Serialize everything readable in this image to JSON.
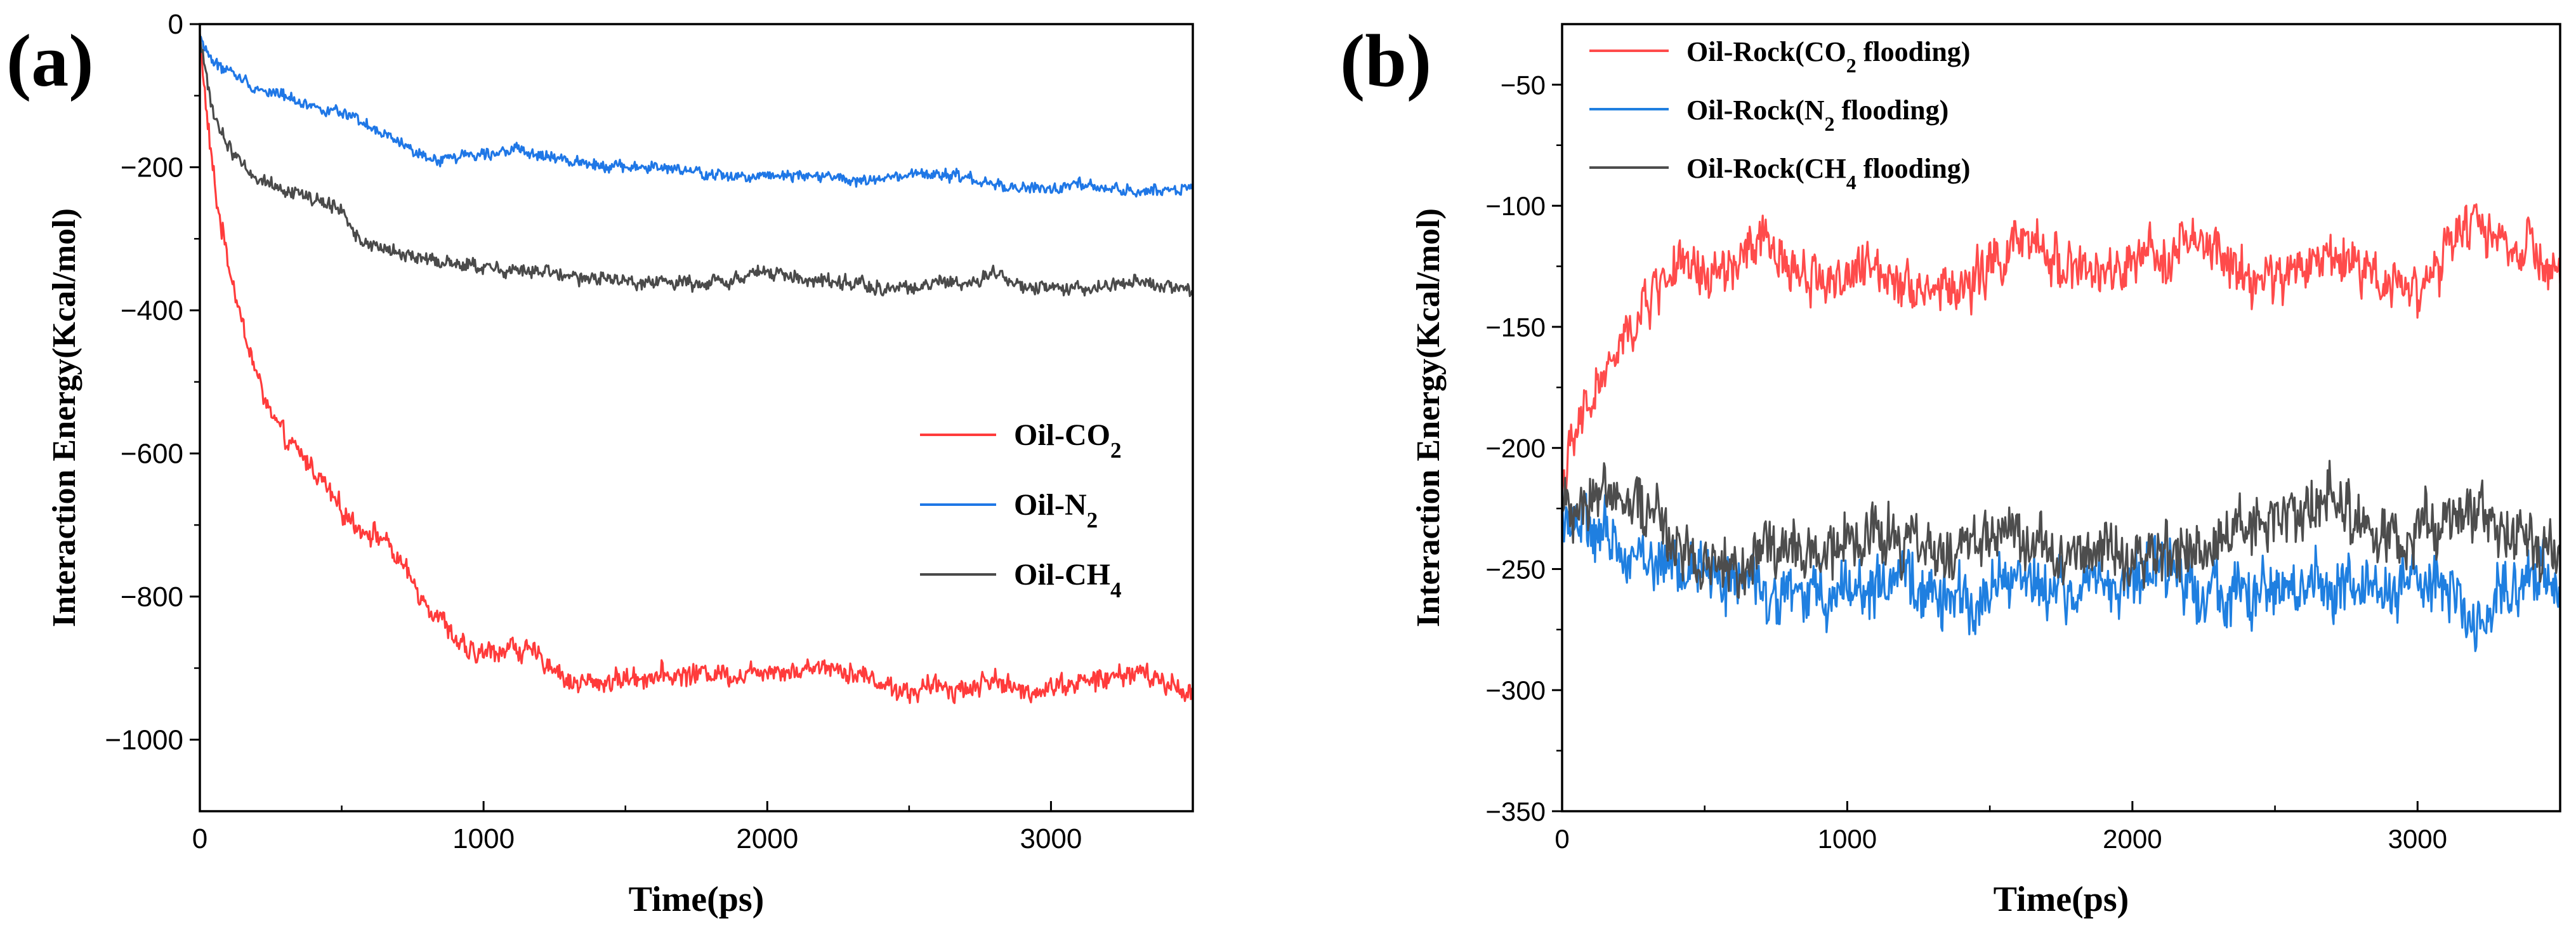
{
  "chart_data": [
    {
      "type": "line",
      "panel_label": "(a)",
      "xlabel": "Time(ps)",
      "ylabel": "Interaction Energy(Kcal/mol)",
      "xlim": [
        0,
        3500
      ],
      "ylim": [
        -1100,
        0
      ],
      "x_ticks": [
        0,
        1000,
        2000,
        3000
      ],
      "x_tick_labels": [
        "0",
        "1000",
        "2000",
        "3000"
      ],
      "y_ticks": [
        0,
        -200,
        -400,
        -600,
        -800,
        -1000
      ],
      "y_tick_labels": [
        "0",
        "−200",
        "−400",
        "−600",
        "−800",
        "−1000"
      ],
      "legend_position": "center-right",
      "series": [
        {
          "name": "Oil-CO2",
          "label_main": "Oil-CO",
          "label_sub": "2",
          "label_after": "",
          "color": "#ff3b3b",
          "x": [
            0,
            30,
            60,
            100,
            150,
            200,
            250,
            300,
            350,
            400,
            450,
            500,
            550,
            600,
            650,
            700,
            750,
            800,
            850,
            900,
            950,
            1000,
            1100,
            1200,
            1250,
            1300,
            1400,
            1500,
            1600,
            1700,
            1800,
            1900,
            2000,
            2100,
            2200,
            2300,
            2400,
            2500,
            2600,
            2700,
            2800,
            2900,
            3000,
            3100,
            3200,
            3300,
            3400,
            3500
          ],
          "y": [
            -20,
            -150,
            -250,
            -330,
            -420,
            -490,
            -545,
            -580,
            -600,
            -620,
            -650,
            -680,
            -700,
            -710,
            -720,
            -750,
            -780,
            -810,
            -830,
            -860,
            -880,
            -880,
            -870,
            -885,
            -900,
            -920,
            -920,
            -915,
            -910,
            -910,
            -905,
            -910,
            -900,
            -905,
            -895,
            -905,
            -920,
            -935,
            -925,
            -930,
            -915,
            -935,
            -925,
            -920,
            -915,
            -905,
            -920,
            -935
          ],
          "noise": 17
        },
        {
          "name": "Oil-N2",
          "label_main": "Oil-N",
          "label_sub": "2",
          "label_after": "",
          "color": "#1f77e6",
          "x": [
            0,
            50,
            100,
            200,
            300,
            400,
            500,
            600,
            700,
            800,
            900,
            1000,
            1100,
            1200,
            1300,
            1400,
            1500,
            1600,
            1700,
            1800,
            1900,
            2000,
            2100,
            2200,
            2300,
            2400,
            2500,
            2600,
            2700,
            2800,
            2900,
            3000,
            3100,
            3200,
            3300,
            3400,
            3500
          ],
          "y": [
            -20,
            -55,
            -65,
            -90,
            -100,
            -115,
            -125,
            -145,
            -165,
            -190,
            -185,
            -180,
            -175,
            -185,
            -190,
            -195,
            -200,
            -200,
            -205,
            -210,
            -215,
            -210,
            -210,
            -212,
            -220,
            -218,
            -212,
            -210,
            -215,
            -225,
            -230,
            -230,
            -225,
            -230,
            -235,
            -230,
            -230
          ],
          "noise": 9
        },
        {
          "name": "Oil-CH4",
          "label_main": "Oil-CH",
          "label_sub": "4",
          "label_after": "",
          "color": "#4a4a4a",
          "x": [
            0,
            30,
            60,
            100,
            150,
            200,
            300,
            400,
            500,
            550,
            600,
            700,
            800,
            900,
            1000,
            1100,
            1200,
            1300,
            1400,
            1500,
            1600,
            1700,
            1800,
            1900,
            2000,
            2100,
            2200,
            2300,
            2400,
            2500,
            2600,
            2700,
            2800,
            2900,
            3000,
            3100,
            3200,
            3300,
            3400,
            3500
          ],
          "y": [
            -20,
            -90,
            -140,
            -170,
            -195,
            -215,
            -230,
            -245,
            -260,
            -295,
            -310,
            -320,
            -330,
            -335,
            -340,
            -345,
            -345,
            -355,
            -355,
            -360,
            -360,
            -362,
            -360,
            -355,
            -345,
            -355,
            -360,
            -362,
            -368,
            -370,
            -360,
            -365,
            -350,
            -368,
            -372,
            -370,
            -365,
            -360,
            -368,
            -375
          ],
          "noise": 11
        }
      ]
    },
    {
      "type": "line",
      "panel_label": "(b)",
      "xlabel": "Time(ps)",
      "ylabel": "Interaction Energy(Kcal/mol)",
      "xlim": [
        0,
        3500
      ],
      "ylim": [
        -350,
        -25
      ],
      "x_ticks": [
        0,
        1000,
        2000,
        3000
      ],
      "x_tick_labels": [
        "0",
        "1000",
        "2000",
        "3000"
      ],
      "y_ticks": [
        -50,
        -100,
        -150,
        -200,
        -250,
        -300,
        -350
      ],
      "y_tick_labels": [
        "−50",
        "−100",
        "−150",
        "−200",
        "−250",
        "−300",
        "−350"
      ],
      "legend_position": "top-left",
      "series": [
        {
          "name": "Oil-Rock(CO2 flooding)",
          "label_main": "Oil-Rock(CO",
          "label_sub": "2",
          "label_after": " flooding)",
          "color": "#ff4b4b",
          "x": [
            0,
            50,
            100,
            150,
            200,
            250,
            300,
            350,
            400,
            500,
            600,
            700,
            800,
            900,
            1000,
            1100,
            1200,
            1300,
            1400,
            1500,
            1600,
            1700,
            1800,
            1900,
            2000,
            2100,
            2200,
            2300,
            2400,
            2500,
            2600,
            2700,
            2800,
            2900,
            3000,
            3100,
            3200,
            3300,
            3400,
            3500
          ],
          "y": [
            -215,
            -195,
            -180,
            -170,
            -160,
            -150,
            -140,
            -130,
            -125,
            -130,
            -125,
            -115,
            -125,
            -130,
            -130,
            -125,
            -130,
            -135,
            -135,
            -125,
            -115,
            -120,
            -125,
            -130,
            -125,
            -120,
            -115,
            -120,
            -130,
            -130,
            -125,
            -120,
            -125,
            -130,
            -135,
            -120,
            -105,
            -115,
            -120,
            -130
          ],
          "noise": 12
        },
        {
          "name": "Oil-Rock(N2 flooding)",
          "label_main": "Oil-Rock(N",
          "label_sub": "2",
          "label_after": " flooding)",
          "color": "#1f7fe0",
          "x": [
            0,
            100,
            200,
            300,
            400,
            500,
            600,
            700,
            800,
            900,
            1000,
            1100,
            1200,
            1300,
            1400,
            1500,
            1600,
            1700,
            1800,
            1900,
            2000,
            2100,
            2200,
            2300,
            2400,
            2500,
            2600,
            2700,
            2800,
            2900,
            3000,
            3100,
            3200,
            3300,
            3400,
            3500
          ],
          "y": [
            -225,
            -235,
            -240,
            -245,
            -250,
            -250,
            -255,
            -258,
            -260,
            -262,
            -255,
            -258,
            -255,
            -260,
            -265,
            -260,
            -250,
            -260,
            -258,
            -255,
            -255,
            -250,
            -255,
            -258,
            -262,
            -260,
            -255,
            -258,
            -255,
            -262,
            -255,
            -258,
            -275,
            -258,
            -250,
            -255
          ],
          "noise": 14
        },
        {
          "name": "Oil-Rock(CH4 flooding)",
          "label_main": "Oil-Rock(CH",
          "label_sub": "4",
          "label_after": " flooding)",
          "color": "#4d4d4d",
          "x": [
            0,
            100,
            200,
            300,
            400,
            500,
            600,
            700,
            800,
            900,
            1000,
            1100,
            1200,
            1300,
            1400,
            1500,
            1600,
            1700,
            1800,
            1900,
            2000,
            2100,
            2200,
            2300,
            2400,
            2500,
            2600,
            2700,
            2800,
            2900,
            3000,
            3100,
            3200,
            3300,
            3400,
            3500
          ],
          "y": [
            -225,
            -220,
            -215,
            -225,
            -240,
            -245,
            -250,
            -245,
            -240,
            -245,
            -240,
            -235,
            -240,
            -245,
            -240,
            -238,
            -235,
            -240,
            -245,
            -240,
            -250,
            -245,
            -240,
            -235,
            -230,
            -235,
            -225,
            -220,
            -230,
            -240,
            -235,
            -230,
            -225,
            -235,
            -240,
            -245
          ],
          "noise": 14
        }
      ]
    }
  ]
}
